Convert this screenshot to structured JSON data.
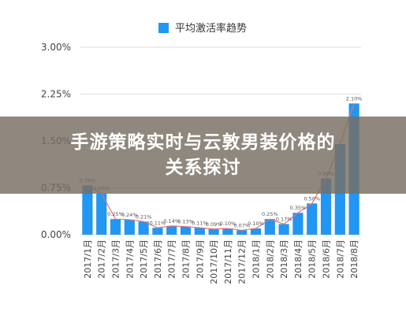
{
  "overlay": {
    "title_line1": "手游策略实时与云敦男装价格的",
    "title_line2": "关系探讨"
  },
  "chart_data": {
    "type": "bar",
    "legend": {
      "label": "平均激活率趋势",
      "position": "top"
    },
    "bar_color": "#2196f3",
    "trend_color": "#e57373",
    "grid": true,
    "ylim": [
      0,
      3.0
    ],
    "yticks": [
      "0.00%",
      "0.75%",
      "1.50%",
      "2.25%",
      "3.00%"
    ],
    "categories": [
      "2017/1月",
      "2017/2月",
      "2017/3月",
      "2017/4月",
      "2017/5月",
      "2017/6月",
      "2017/7月",
      "2017/8月",
      "2017/9月",
      "2017/10月",
      "2017/11月",
      "2017/12月",
      "2018/1月",
      "2018/2月",
      "2018/3月",
      "2018/4月",
      "2018/5月",
      "2018/6月",
      "2018/7月",
      "2018/8月"
    ],
    "values": [
      0.79,
      0.66,
      0.25,
      0.24,
      0.21,
      0.11,
      0.14,
      0.13,
      0.11,
      0.09,
      0.1,
      0.07,
      0.1,
      0.25,
      0.17,
      0.35,
      0.5,
      0.9,
      1.45,
      2.1
    ],
    "data_labels": [
      "0.79%",
      "0.66%",
      "0.25%",
      "0.24%",
      "0.21%",
      "0.11%",
      "0.14%",
      "0.13%",
      "0.11%",
      "0.09%",
      "0.10%",
      "0.07%",
      "0.10%",
      "0.25%",
      "0.17%",
      "0.35%",
      "0.50%",
      "0.90%",
      "",
      "2.10%"
    ]
  }
}
